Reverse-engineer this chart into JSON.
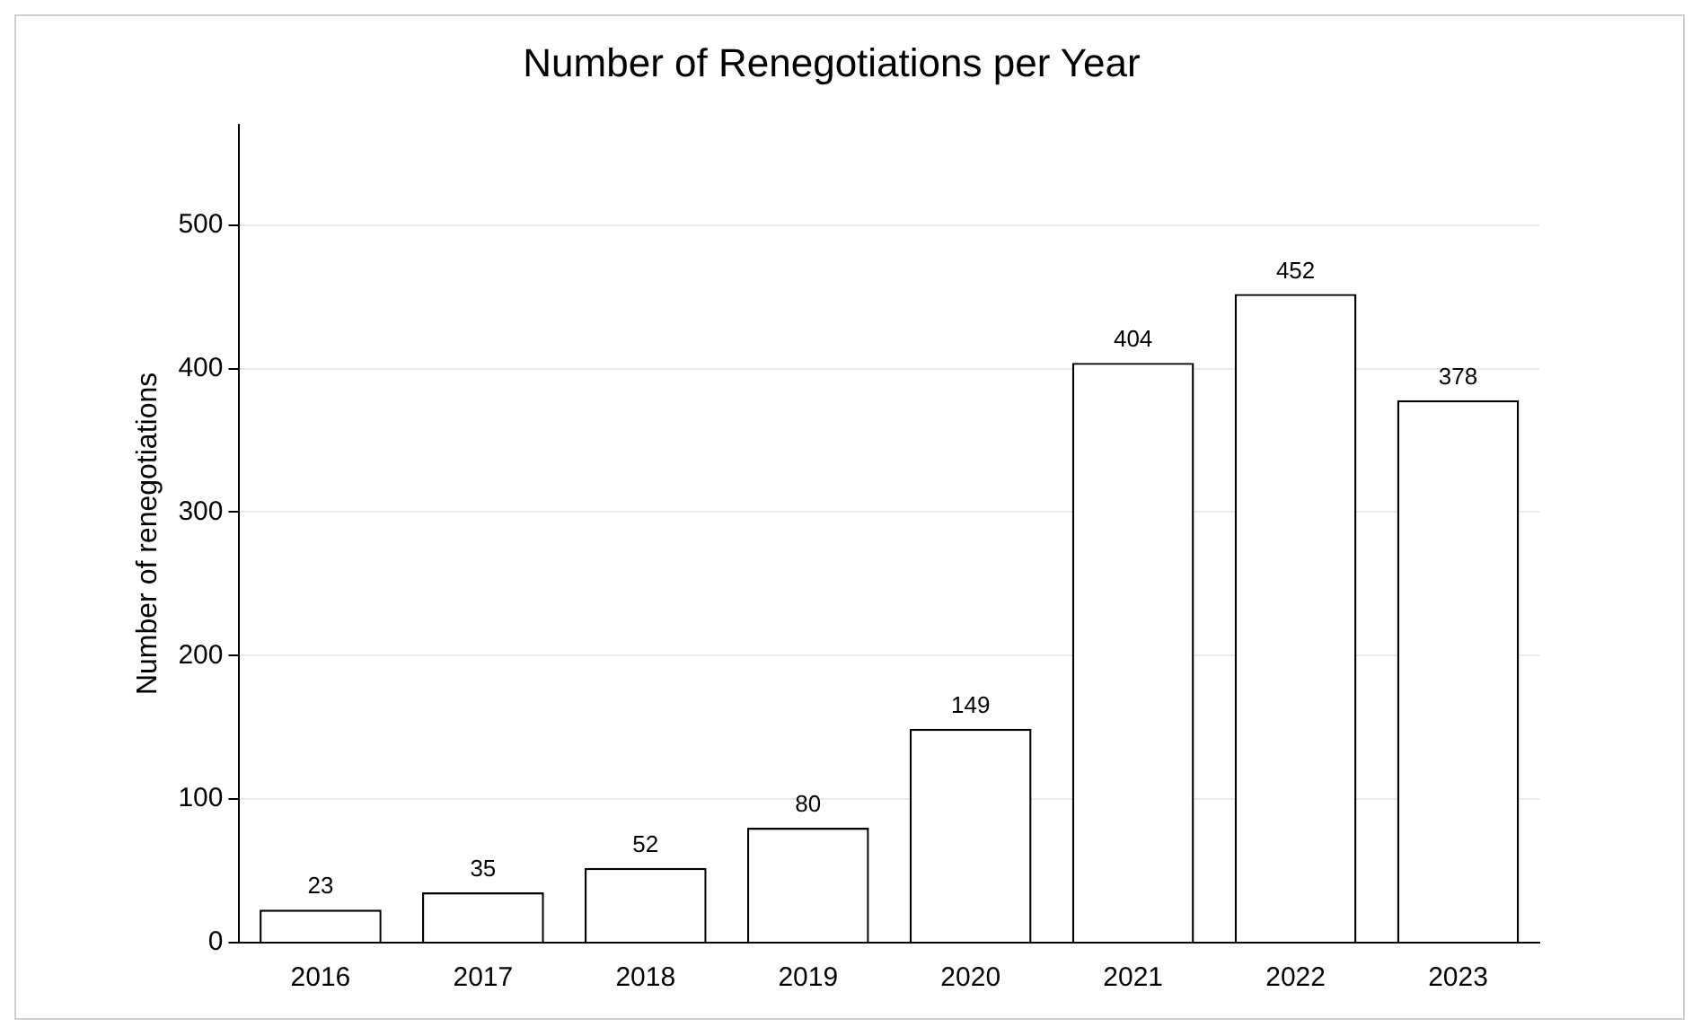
{
  "chart_data": {
    "type": "bar",
    "title": "Number of Renegotiations per Year",
    "ylabel": "Number of renegotiations",
    "categories": [
      "2016",
      "2017",
      "2018",
      "2019",
      "2020",
      "2021",
      "2022",
      "2023"
    ],
    "values": [
      23,
      35,
      52,
      80,
      149,
      404,
      452,
      378
    ],
    "color": "#ffffff",
    "ylim": [
      0,
      570
    ],
    "yticks": [
      0,
      100,
      200,
      300,
      400,
      500
    ],
    "grid": "y",
    "data_labels": true,
    "legend": false
  }
}
